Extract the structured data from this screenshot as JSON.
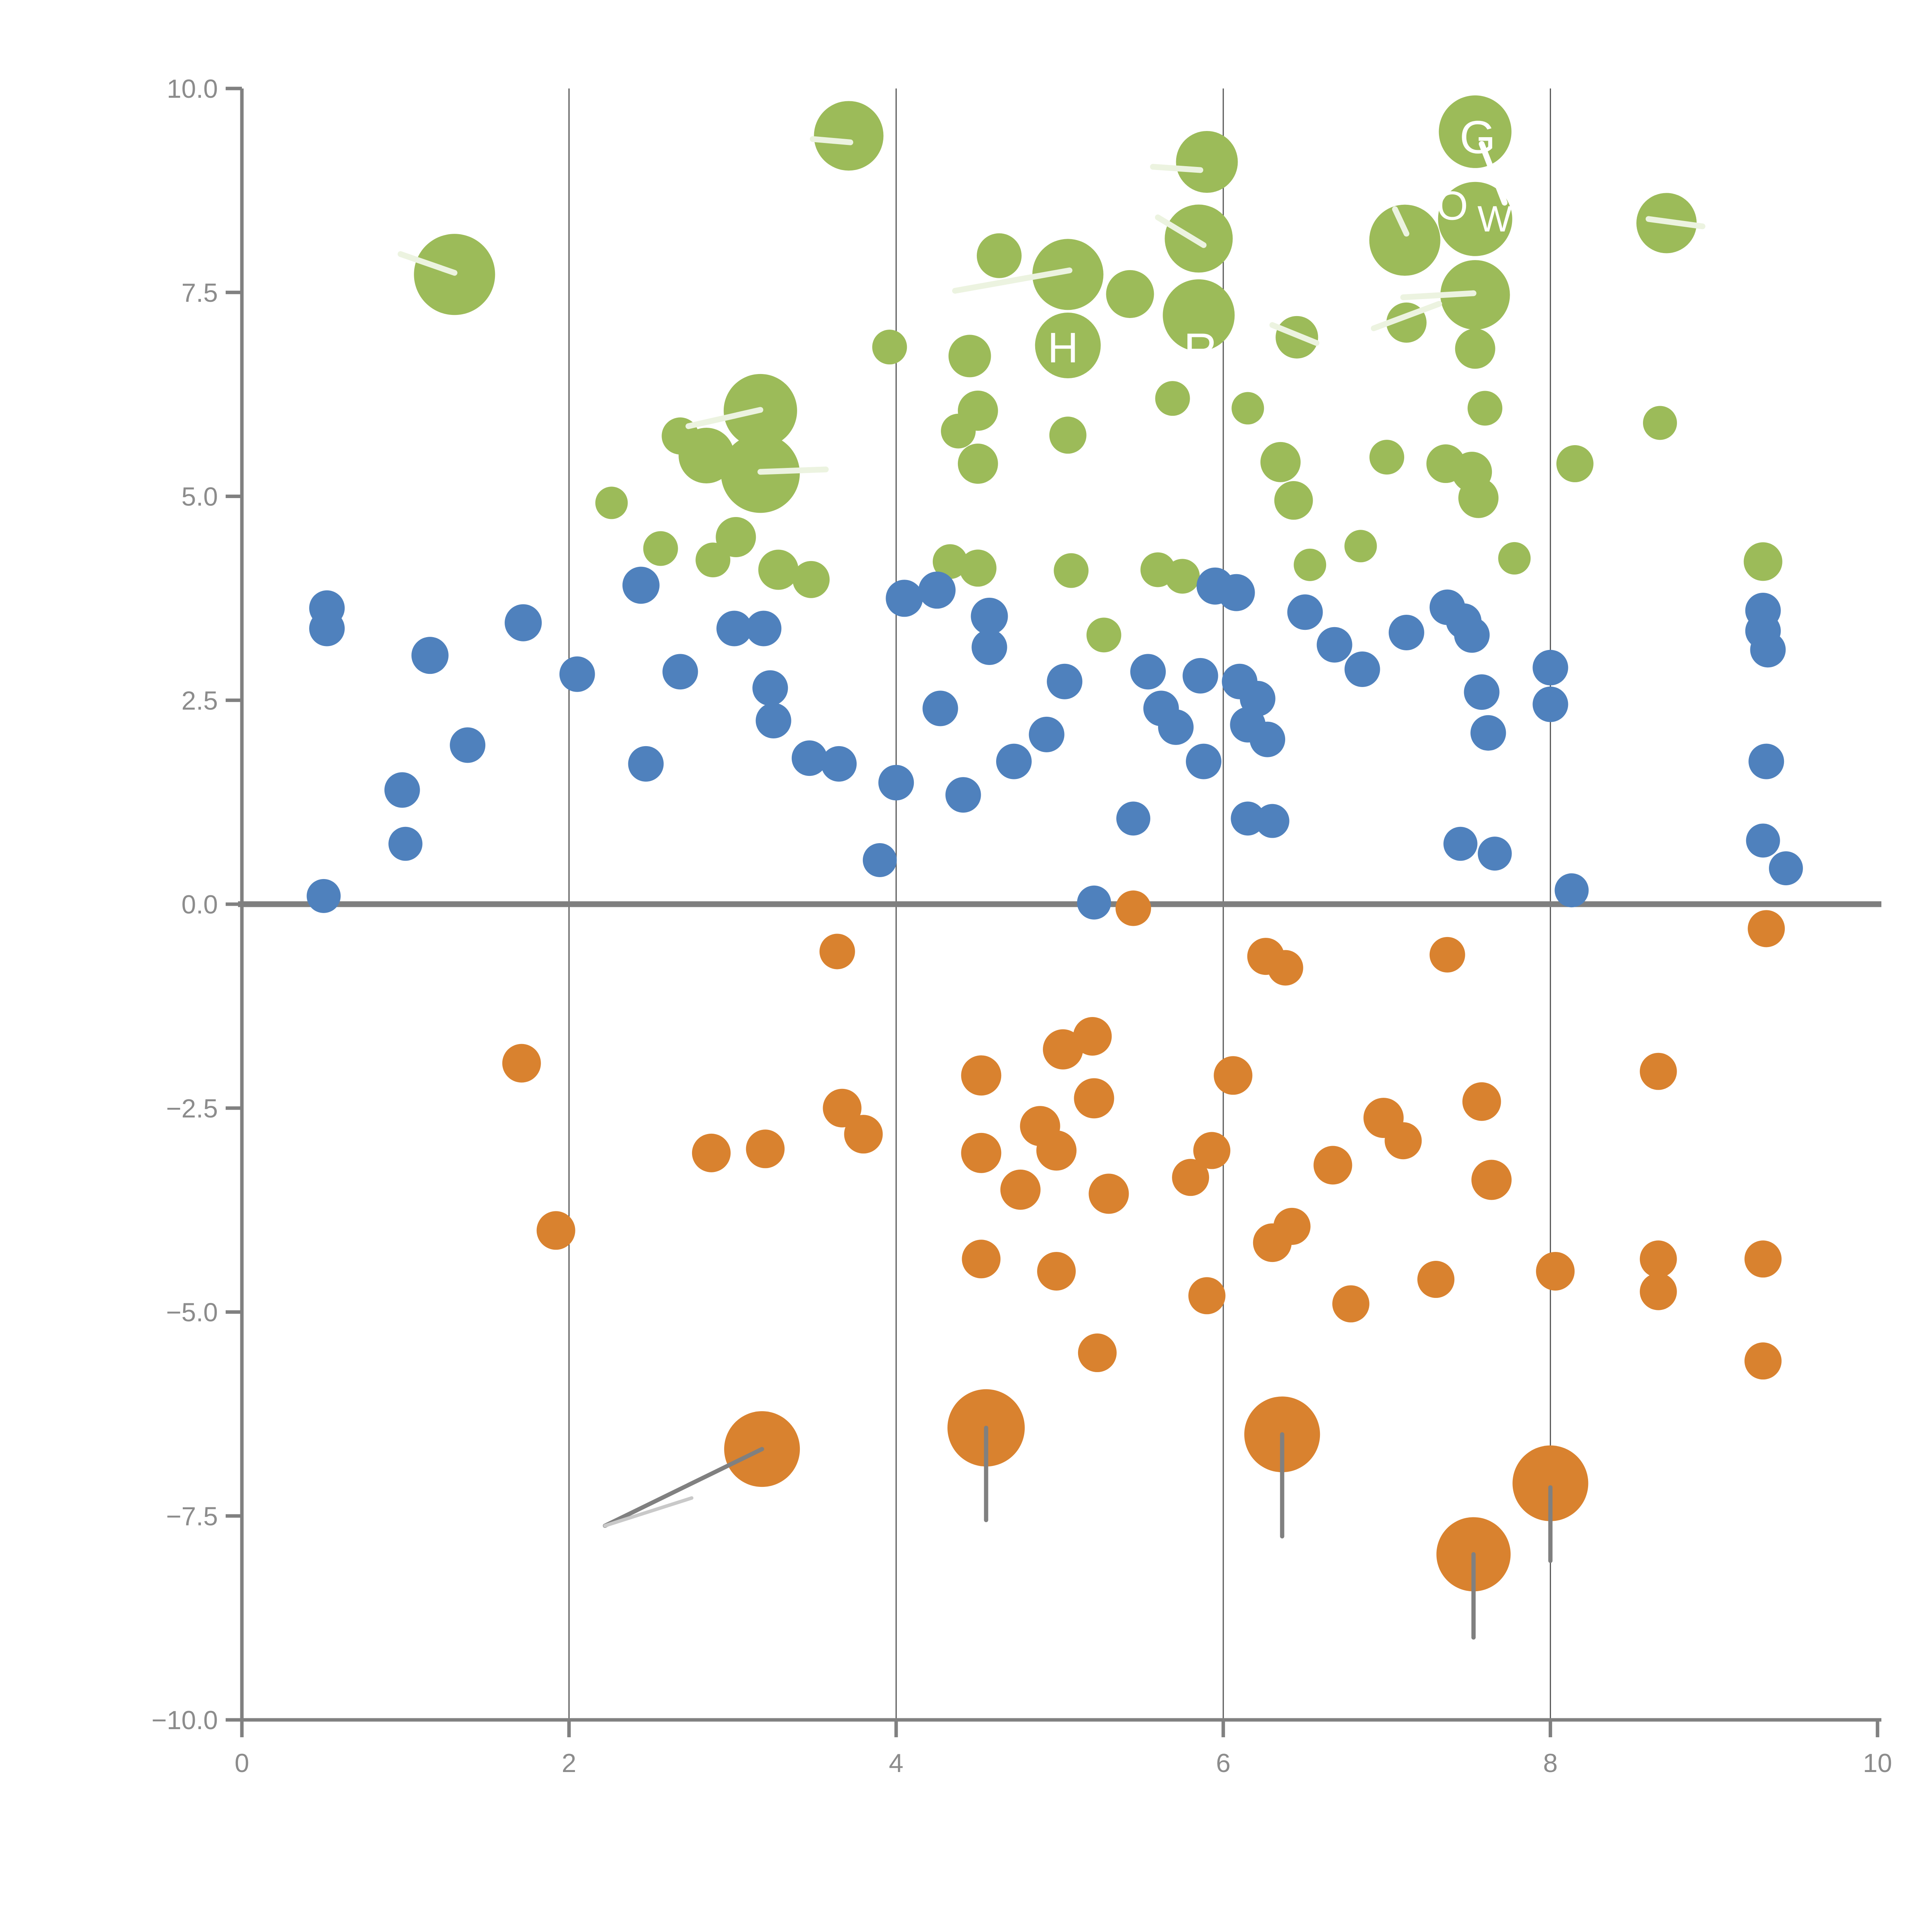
{
  "chart_data": {
    "type": "scatter",
    "title": "",
    "xlabel": "",
    "ylabel": "",
    "xlim": [
      0,
      10
    ],
    "ylim": [
      -10,
      10
    ],
    "x_ticks": {
      "values": [
        0,
        2,
        4,
        6,
        8,
        10
      ],
      "labels": [
        "0",
        "2",
        "4",
        "6",
        "8",
        "10"
      ]
    },
    "y_ticks": {
      "values": [
        10,
        7.5,
        5,
        2.5,
        0,
        -2.5,
        -5,
        -7.5,
        -10
      ],
      "labels": [
        "10.0",
        "7.5",
        "5.0",
        "2.5",
        "0.0",
        "−2.5",
        "−5.0",
        "−7.5",
        "−10.0"
      ]
    },
    "grid_x_values": [
      2,
      4,
      6,
      8
    ],
    "zero_line_y": 0,
    "legend_position": "none",
    "colors": {
      "green": "#9cbb59",
      "blue": "#4f81bd",
      "orange": "#d9822f",
      "axis": "#808080",
      "grid": "#555555",
      "tick_label": "#8c8c8c",
      "zero_line": "#7f7f7f",
      "stem": "#808080",
      "stem_light": "#c9c9c9",
      "stroke_light": "#ecf3e0",
      "letter_white": "#ffffff",
      "background": "#ffffff"
    },
    "series": [
      {
        "name": "green",
        "color": "#9cbb59",
        "points": [
          [
            1.3,
            7.72,
            105
          ],
          [
            3.71,
            9.42,
            90
          ],
          [
            3.17,
            6.05,
            95
          ],
          [
            3.17,
            5.28,
            102
          ],
          [
            2.84,
            5.5,
            72
          ],
          [
            2.68,
            5.74,
            48
          ],
          [
            3.02,
            4.5,
            52
          ],
          [
            2.88,
            4.22,
            45
          ],
          [
            3.28,
            4.1,
            52
          ],
          [
            3.48,
            3.98,
            48
          ],
          [
            2.56,
            4.36,
            45
          ],
          [
            2.26,
            4.92,
            42
          ],
          [
            4.45,
            6.72,
            55
          ],
          [
            5.05,
            7.72,
            92
          ],
          [
            4.5,
            6.05,
            52
          ],
          [
            4.38,
            5.8,
            45
          ],
          [
            4.5,
            5.4,
            52
          ],
          [
            4.5,
            4.12,
            48
          ],
          [
            4.33,
            4.2,
            45
          ],
          [
            4.63,
            7.95,
            58
          ],
          [
            5.43,
            7.48,
            62
          ],
          [
            5.05,
            6.85,
            85
          ],
          [
            5.05,
            5.75,
            48
          ],
          [
            5.07,
            4.09,
            45
          ],
          [
            5.27,
            3.3,
            45
          ],
          [
            5.6,
            4.1,
            45
          ],
          [
            5.75,
            4.02,
            45
          ],
          [
            5.9,
            9.1,
            80
          ],
          [
            5.85,
            8.16,
            88
          ],
          [
            5.85,
            7.22,
            93
          ],
          [
            6.45,
            6.95,
            55
          ],
          [
            5.69,
            6.2,
            45
          ],
          [
            6.15,
            6.08,
            42
          ],
          [
            6.35,
            5.42,
            52
          ],
          [
            6.43,
            4.95,
            50
          ],
          [
            6.53,
            4.16,
            42
          ],
          [
            6.84,
            4.39,
            42
          ],
          [
            7.0,
            5.48,
            45
          ],
          [
            7.12,
            7.13,
            52
          ],
          [
            7.11,
            8.14,
            92
          ],
          [
            7.54,
            9.47,
            94
          ],
          [
            7.54,
            8.4,
            96
          ],
          [
            7.54,
            7.47,
            90
          ],
          [
            7.54,
            6.81,
            52
          ],
          [
            7.6,
            6.08,
            45
          ],
          [
            7.36,
            5.4,
            50
          ],
          [
            7.52,
            5.3,
            52
          ],
          [
            7.56,
            4.98,
            52
          ],
          [
            7.78,
            4.24,
            42
          ],
          [
            8.15,
            5.4,
            48
          ],
          [
            8.71,
            8.35,
            78
          ],
          [
            8.67,
            5.9,
            44
          ],
          [
            9.3,
            4.2,
            50
          ],
          [
            3.96,
            6.83,
            45
          ]
        ]
      },
      {
        "name": "blue",
        "color": "#4f81bd",
        "points": [
          [
            0.52,
            3.63,
            46
          ],
          [
            0.52,
            3.38,
            46
          ],
          [
            0.5,
            0.1,
            44
          ],
          [
            1.15,
            3.05,
            48
          ],
          [
            0.98,
            1.4,
            46
          ],
          [
            1.0,
            0.74,
            44
          ],
          [
            1.38,
            1.95,
            46
          ],
          [
            1.72,
            3.45,
            48
          ],
          [
            2.05,
            2.82,
            46
          ],
          [
            2.44,
            3.91,
            48
          ],
          [
            2.47,
            1.72,
            46
          ],
          [
            2.68,
            2.85,
            46
          ],
          [
            3.01,
            3.38,
            46
          ],
          [
            3.19,
            3.38,
            46
          ],
          [
            3.23,
            2.65,
            46
          ],
          [
            3.25,
            2.25,
            46
          ],
          [
            3.47,
            1.79,
            46
          ],
          [
            3.65,
            1.72,
            46
          ],
          [
            3.9,
            0.54,
            44
          ],
          [
            4.0,
            1.49,
            46
          ],
          [
            4.05,
            3.75,
            48
          ],
          [
            4.25,
            3.85,
            48
          ],
          [
            4.27,
            2.4,
            46
          ],
          [
            4.41,
            1.34,
            46
          ],
          [
            4.57,
            3.53,
            48
          ],
          [
            4.57,
            3.15,
            46
          ],
          [
            4.72,
            1.75,
            46
          ],
          [
            4.92,
            2.08,
            46
          ],
          [
            5.03,
            2.73,
            46
          ],
          [
            5.21,
            0.02,
            44
          ],
          [
            5.45,
            1.05,
            44
          ],
          [
            5.54,
            2.85,
            46
          ],
          [
            5.62,
            2.4,
            46
          ],
          [
            5.71,
            2.17,
            46
          ],
          [
            5.88,
            1.75,
            46
          ],
          [
            5.95,
            3.9,
            48
          ],
          [
            6.08,
            3.82,
            48
          ],
          [
            5.86,
            2.8,
            46
          ],
          [
            6.1,
            2.73,
            46
          ],
          [
            6.15,
            2.2,
            46
          ],
          [
            6.21,
            2.52,
            46
          ],
          [
            6.27,
            2.02,
            46
          ],
          [
            6.15,
            1.05,
            44
          ],
          [
            6.3,
            1.02,
            44
          ],
          [
            6.5,
            3.58,
            46
          ],
          [
            6.68,
            3.18,
            46
          ],
          [
            6.85,
            2.88,
            46
          ],
          [
            7.12,
            3.33,
            46
          ],
          [
            7.37,
            3.64,
            46
          ],
          [
            7.47,
            3.47,
            46
          ],
          [
            7.52,
            3.3,
            46
          ],
          [
            7.58,
            2.6,
            46
          ],
          [
            7.62,
            2.1,
            46
          ],
          [
            7.45,
            0.74,
            44
          ],
          [
            7.66,
            0.62,
            44
          ],
          [
            8.0,
            2.9,
            46
          ],
          [
            8.0,
            2.45,
            46
          ],
          [
            8.13,
            0.17,
            44
          ],
          [
            9.3,
            3.6,
            46
          ],
          [
            9.3,
            3.35,
            46
          ],
          [
            9.33,
            3.12,
            46
          ],
          [
            9.32,
            1.75,
            46
          ],
          [
            9.3,
            0.78,
            44
          ],
          [
            9.44,
            0.44,
            44
          ]
        ]
      },
      {
        "name": "orange",
        "color": "#d9822f",
        "points": [
          [
            1.71,
            -1.95,
            50
          ],
          [
            1.92,
            -4.0,
            50
          ],
          [
            2.87,
            -3.05,
            50
          ],
          [
            3.2,
            -3.0,
            50
          ],
          [
            3.64,
            -0.58,
            46
          ],
          [
            3.67,
            -2.5,
            50
          ],
          [
            3.8,
            -2.82,
            50
          ],
          [
            4.52,
            -2.1,
            52
          ],
          [
            4.52,
            -3.05,
            52
          ],
          [
            4.76,
            -3.5,
            52
          ],
          [
            4.52,
            -4.35,
            50
          ],
          [
            5.02,
            -1.78,
            52
          ],
          [
            5.2,
            -1.62,
            50
          ],
          [
            4.88,
            -2.72,
            52
          ],
          [
            4.98,
            -3.02,
            52
          ],
          [
            5.21,
            -2.38,
            52
          ],
          [
            5.3,
            -3.55,
            52
          ],
          [
            4.98,
            -4.5,
            50
          ],
          [
            5.45,
            -0.05,
            46
          ],
          [
            5.8,
            -3.35,
            48
          ],
          [
            5.93,
            -3.02,
            48
          ],
          [
            5.9,
            -4.8,
            48
          ],
          [
            6.06,
            -2.1,
            50
          ],
          [
            6.3,
            -4.15,
            50
          ],
          [
            6.42,
            -3.95,
            48
          ],
          [
            6.67,
            -3.2,
            50
          ],
          [
            6.78,
            -4.9,
            48
          ],
          [
            6.98,
            -2.62,
            52
          ],
          [
            7.1,
            -2.9,
            48
          ],
          [
            7.3,
            -4.6,
            48
          ],
          [
            7.58,
            -2.42,
            50
          ],
          [
            7.64,
            -3.38,
            52
          ],
          [
            8.03,
            -4.5,
            50
          ],
          [
            8.66,
            -2.05,
            48
          ],
          [
            8.66,
            -4.35,
            48
          ],
          [
            8.66,
            -4.75,
            48
          ],
          [
            9.3,
            -4.35,
            48
          ],
          [
            9.3,
            -5.6,
            48
          ],
          [
            9.32,
            -0.3,
            48
          ],
          [
            7.37,
            -0.62,
            46
          ],
          [
            6.26,
            -0.64,
            48
          ],
          [
            6.38,
            -0.78,
            46
          ],
          [
            5.23,
            -5.5,
            50
          ],
          [
            3.18,
            -6.68,
            98
          ],
          [
            4.55,
            -6.42,
            100
          ],
          [
            6.36,
            -6.5,
            98
          ],
          [
            7.53,
            -7.97,
            96
          ],
          [
            8.0,
            -7.1,
            98
          ]
        ]
      }
    ],
    "stems": [
      {
        "x1": 3.18,
        "y1": -6.68,
        "x2": 2.22,
        "y2": -7.62
      },
      {
        "x1": 4.55,
        "y1": -6.42,
        "x2": 4.55,
        "y2": -7.55
      },
      {
        "x1": 6.36,
        "y1": -6.5,
        "x2": 6.36,
        "y2": -7.75
      },
      {
        "x1": 7.53,
        "y1": -7.97,
        "x2": 7.53,
        "y2": -8.99
      },
      {
        "x1": 8.0,
        "y1": -7.15,
        "x2": 8.0,
        "y2": -8.05
      }
    ],
    "stem_light_segments": [
      {
        "x1": 2.22,
        "y1": -7.62,
        "x2": 2.75,
        "y2": -7.28
      }
    ],
    "white_letters": [
      {
        "t": "G",
        "x": 7.555,
        "y": 9.4,
        "size": 120
      },
      {
        "t": "O",
        "x": 7.4,
        "y": 8.56,
        "size": 105
      },
      {
        "t": "W",
        "x": 7.66,
        "y": 8.4,
        "size": 95
      },
      {
        "t": "R",
        "x": 5.86,
        "y": 6.8,
        "size": 120
      },
      {
        "t": "H",
        "x": 5.02,
        "y": 6.82,
        "size": 110
      }
    ],
    "white_strokes": [
      {
        "x1": 0.97,
        "y1": 7.97,
        "x2": 1.3,
        "y2": 7.74,
        "c": "light"
      },
      {
        "x1": 3.49,
        "y1": 9.38,
        "x2": 3.72,
        "y2": 9.34,
        "c": "light"
      },
      {
        "x1": 2.73,
        "y1": 5.86,
        "x2": 3.17,
        "y2": 6.06,
        "c": "light"
      },
      {
        "x1": 3.17,
        "y1": 5.3,
        "x2": 3.57,
        "y2": 5.33,
        "c": "light"
      },
      {
        "x1": 4.36,
        "y1": 7.52,
        "x2": 5.06,
        "y2": 7.77,
        "c": "light"
      },
      {
        "x1": 5.57,
        "y1": 9.04,
        "x2": 5.86,
        "y2": 9.0,
        "c": "light"
      },
      {
        "x1": 5.6,
        "y1": 8.42,
        "x2": 5.88,
        "y2": 8.08,
        "c": "light"
      },
      {
        "x1": 6.3,
        "y1": 7.1,
        "x2": 6.57,
        "y2": 6.88,
        "c": "light"
      },
      {
        "x1": 7.05,
        "y1": 8.52,
        "x2": 7.12,
        "y2": 8.22,
        "c": "light"
      },
      {
        "x1": 7.58,
        "y1": 9.32,
        "x2": 7.72,
        "y2": 8.6,
        "c": "white"
      },
      {
        "x1": 6.92,
        "y1": 7.06,
        "x2": 7.32,
        "y2": 7.36,
        "c": "light"
      },
      {
        "x1": 7.1,
        "y1": 7.44,
        "x2": 7.53,
        "y2": 7.49,
        "c": "light"
      },
      {
        "x1": 8.6,
        "y1": 8.4,
        "x2": 8.93,
        "y2": 8.31,
        "c": "light"
      }
    ]
  }
}
